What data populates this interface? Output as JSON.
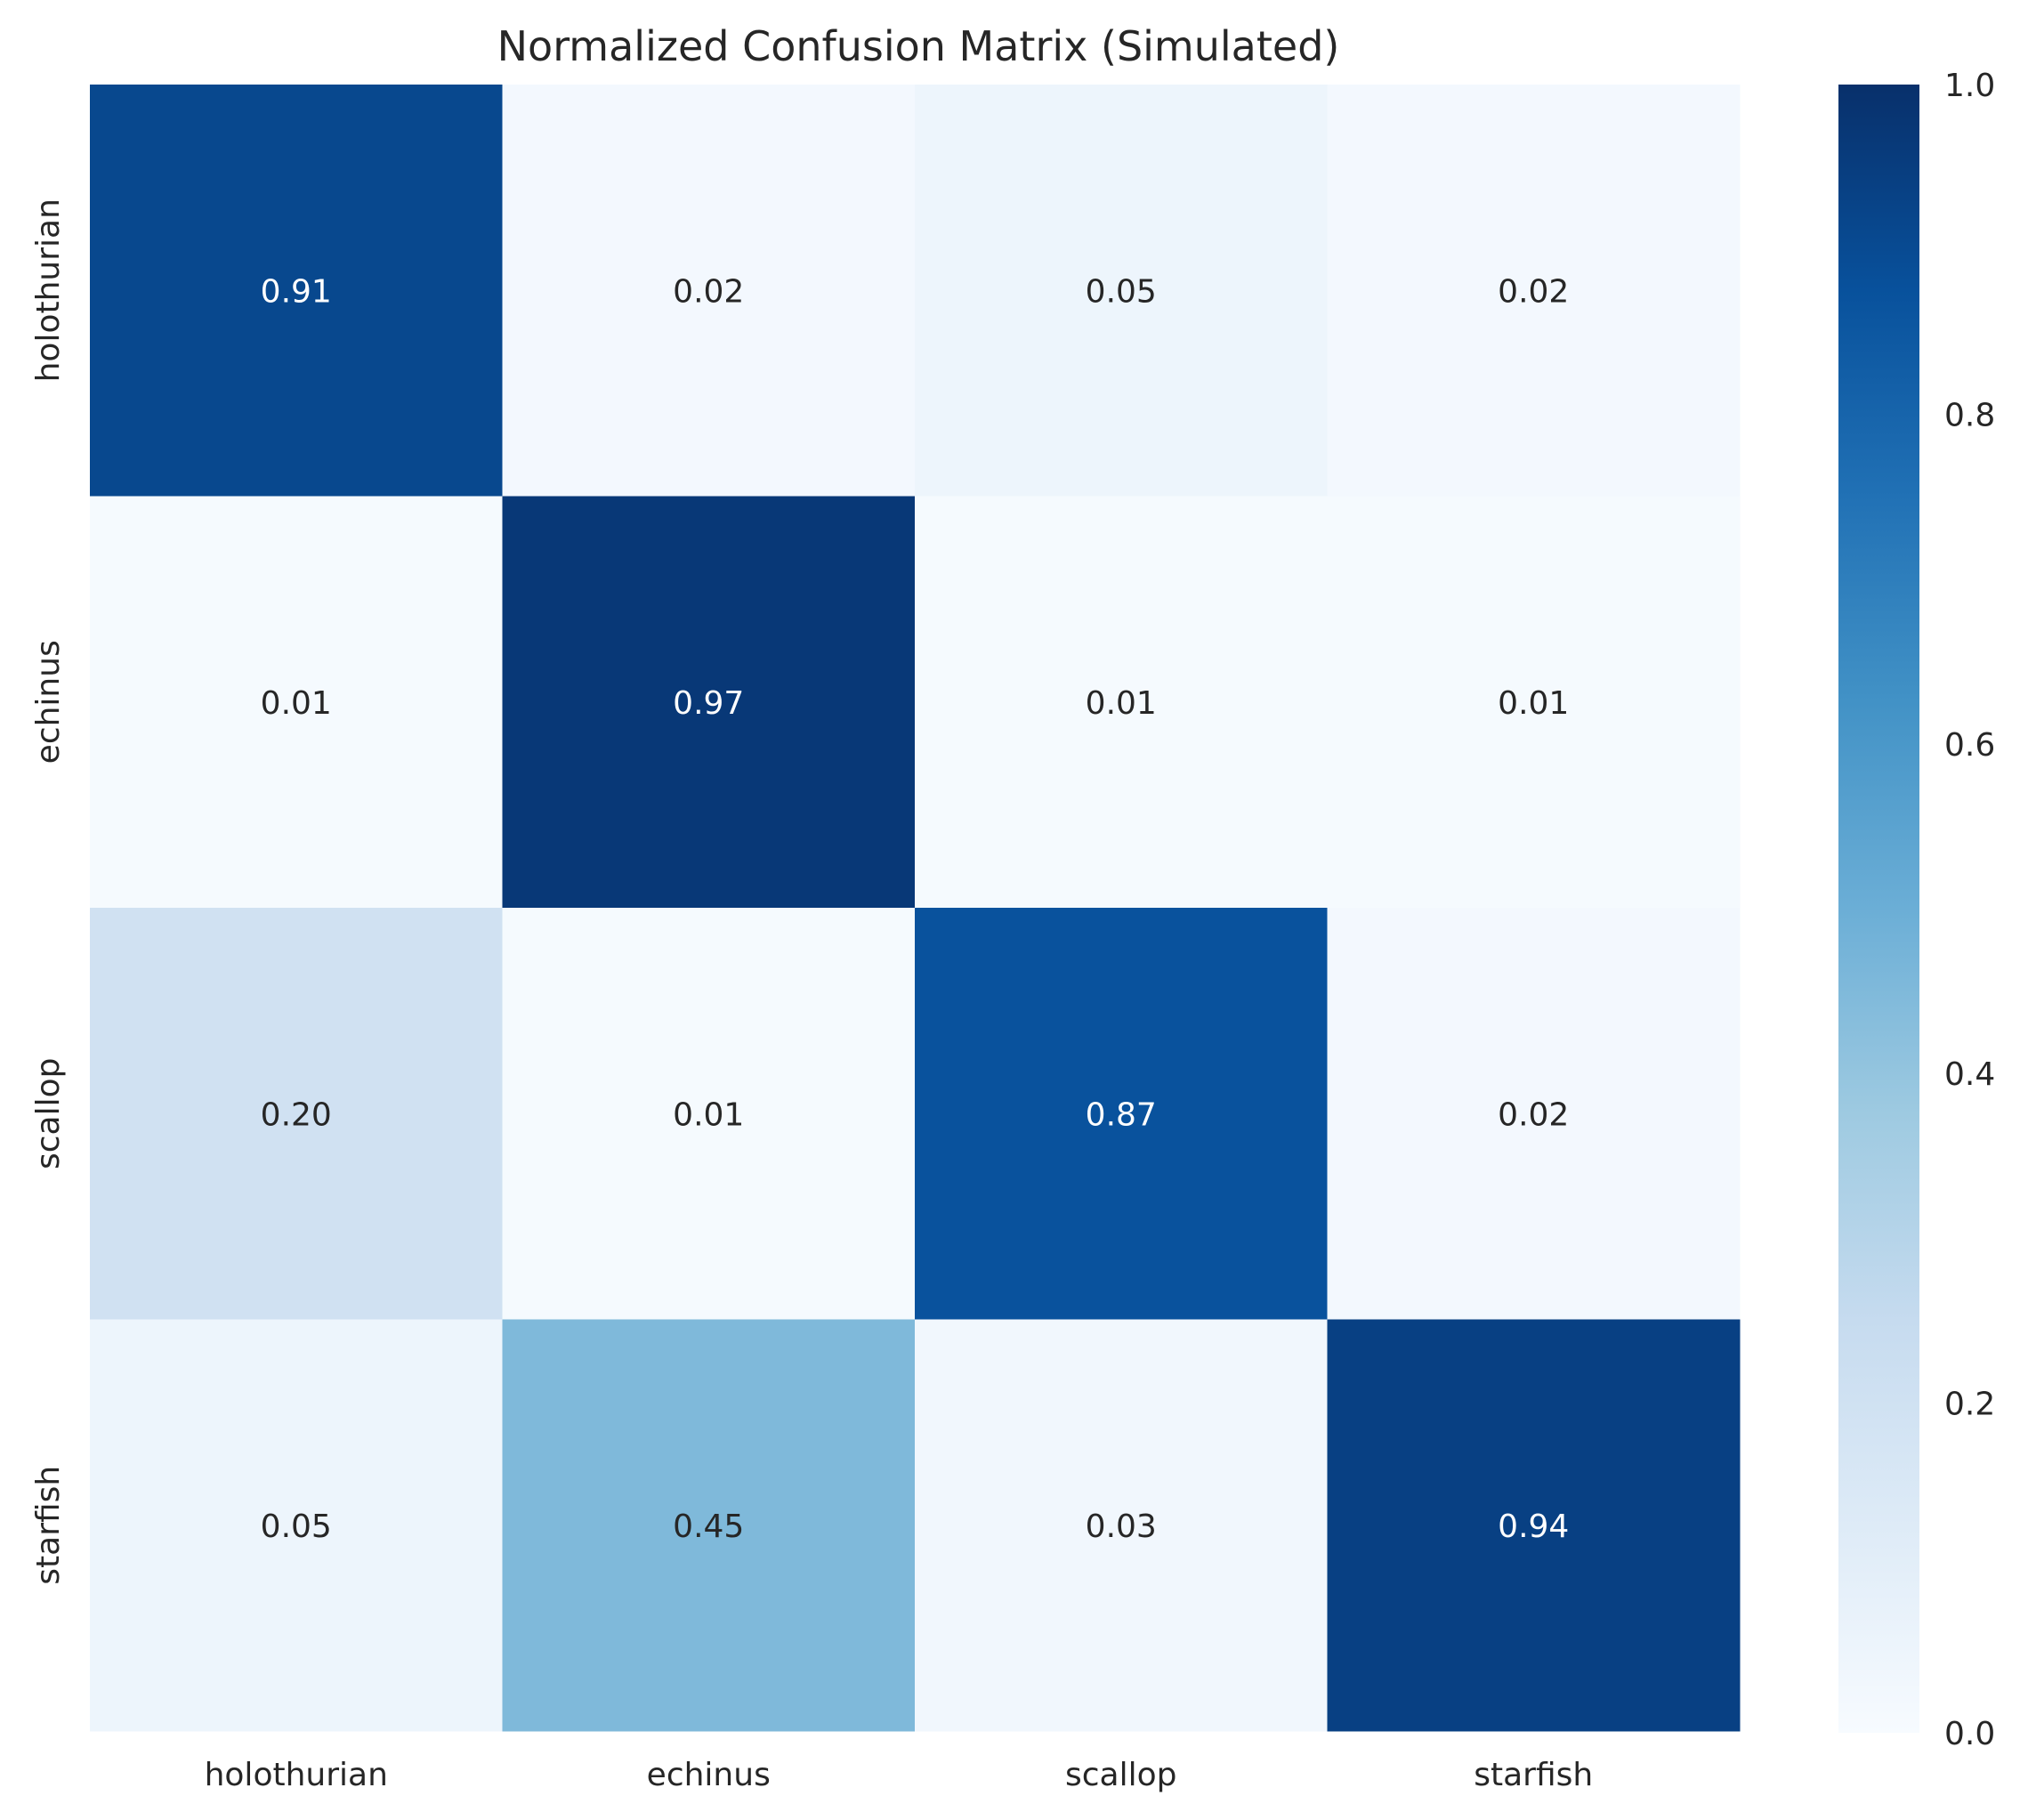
{
  "chart_data": {
    "type": "heatmap",
    "title": "Normalized Confusion Matrix (Simulated)",
    "xlabel": "",
    "ylabel": "",
    "x_categories": [
      "holothurian",
      "echinus",
      "scallop",
      "starfish"
    ],
    "y_categories": [
      "holothurian",
      "echinus",
      "scallop",
      "starfish"
    ],
    "values": [
      [
        0.91,
        0.02,
        0.05,
        0.02
      ],
      [
        0.01,
        0.97,
        0.01,
        0.01
      ],
      [
        0.2,
        0.01,
        0.87,
        0.02
      ],
      [
        0.05,
        0.45,
        0.03,
        0.94
      ]
    ],
    "value_format": "0.00",
    "colormap": "Blues",
    "color_range": [
      0.0,
      1.0
    ],
    "colorbar": {
      "position": "right",
      "ticks": [
        0.0,
        0.2,
        0.4,
        0.6,
        0.8,
        1.0
      ],
      "tick_labels": [
        "0.0",
        "0.2",
        "0.4",
        "0.6",
        "0.8",
        "1.0"
      ]
    },
    "grid": false
  }
}
